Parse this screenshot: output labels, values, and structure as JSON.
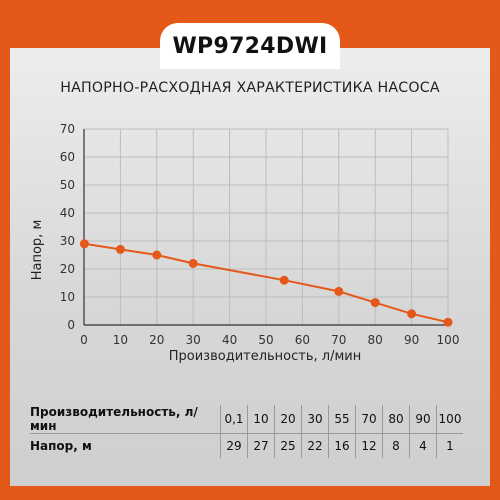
{
  "model": "WP9724DWI",
  "chart_data": {
    "type": "line",
    "title": "НАПОРНО-РАСХОДНАЯ ХАРАКТЕРИСТИКА НАСОСА",
    "xlabel": "Производительность, л/мин",
    "ylabel": "Напор, м",
    "xlim": [
      0,
      100
    ],
    "ylim": [
      0,
      70
    ],
    "xticks": [
      "0",
      "10",
      "20",
      "30",
      "40",
      "50",
      "60",
      "70",
      "80",
      "90",
      "100"
    ],
    "yticks": [
      "0",
      "10",
      "20",
      "30",
      "40",
      "50",
      "60",
      "70"
    ],
    "grid": true,
    "line_color": "#e4591a",
    "series": [
      {
        "x": [
          0.1,
          10,
          20,
          30,
          55,
          70,
          80,
          90,
          100
        ],
        "y": [
          29,
          27,
          25,
          22,
          16,
          12,
          8,
          4,
          1
        ]
      }
    ]
  },
  "table": {
    "flow_label": "Производительность, л/мин",
    "head_label": "Напор, м",
    "flow_values": [
      "0,1",
      "10",
      "20",
      "30",
      "55",
      "70",
      "80",
      "90",
      "100"
    ],
    "head_values": [
      "29",
      "27",
      "25",
      "22",
      "16",
      "12",
      "8",
      "4",
      "1"
    ]
  },
  "colors": {
    "accent": "#e4591a",
    "panel": "#e2e2e2"
  }
}
